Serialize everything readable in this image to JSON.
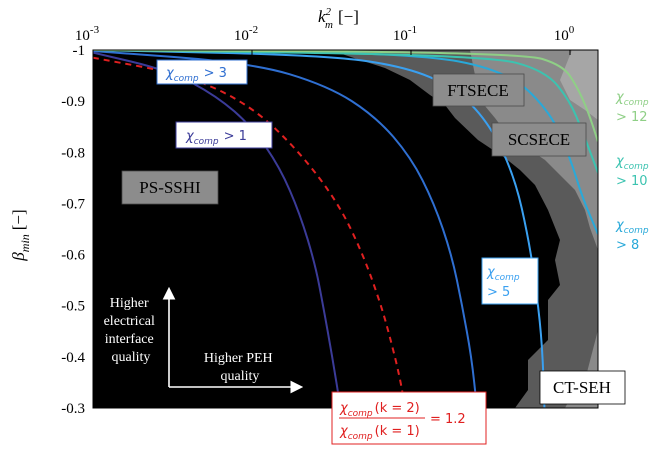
{
  "chart_data": {
    "type": "area",
    "title": "",
    "xlabel": {
      "symbol": "k",
      "sup": "2",
      "sub": "m",
      "unit": "[−]"
    },
    "ylabel": {
      "symbol": "β",
      "sub": "min",
      "unit": "[−]"
    },
    "x_scale": "log",
    "xlim": [
      0.001,
      1.5
    ],
    "ylim": [
      -0.3,
      -1.0
    ],
    "x_ticks": [
      {
        "value": 0.001,
        "base": "10",
        "exp": "-3"
      },
      {
        "value": 0.01,
        "base": "10",
        "exp": "-2"
      },
      {
        "value": 0.1,
        "base": "10",
        "exp": "-1"
      },
      {
        "value": 1,
        "base": "10",
        "exp": "0"
      }
    ],
    "y_ticks": [
      {
        "value": -1.0,
        "label": "-1"
      },
      {
        "value": -0.9,
        "label": "-0.9"
      },
      {
        "value": -0.8,
        "label": "-0.8"
      },
      {
        "value": -0.7,
        "label": "-0.7"
      },
      {
        "value": -0.6,
        "label": "-0.6"
      },
      {
        "value": -0.5,
        "label": "-0.5"
      },
      {
        "value": -0.4,
        "label": "-0.4"
      },
      {
        "value": -0.3,
        "label": "-0.3"
      }
    ],
    "regions": [
      {
        "label": "PS-SSHI",
        "color": "#000000"
      },
      {
        "label": "FTSECE",
        "color": "#5a5a5a"
      },
      {
        "label": "SCSECE",
        "color": "#8a8a8a"
      },
      {
        "label": "CT-SEH",
        "color": "#ffffff"
      }
    ],
    "series": [
      {
        "id": "c1",
        "label": "χcomp > 1",
        "color": "#3b3b98",
        "dashed": false,
        "x": [
          0.001,
          0.003,
          0.006,
          0.01,
          0.015,
          0.02,
          0.025,
          0.028,
          0.032,
          0.036
        ],
        "y": [
          -0.995,
          -0.96,
          -0.91,
          -0.85,
          -0.77,
          -0.68,
          -0.58,
          -0.5,
          -0.4,
          -0.3
        ]
      },
      {
        "id": "c3",
        "label": "χcomp > 3",
        "color": "#2f6fd1",
        "dashed": false,
        "x": [
          0.001,
          0.01,
          0.03,
          0.06,
          0.1,
          0.14,
          0.18,
          0.21,
          0.24,
          0.26
        ],
        "y": [
          -0.998,
          -0.975,
          -0.93,
          -0.87,
          -0.79,
          -0.7,
          -0.6,
          -0.5,
          -0.4,
          -0.3
        ]
      },
      {
        "id": "ratio",
        "label": "χcomp(k=2)/χcomp(k=1) = 1.2",
        "color": "#e02020",
        "dashed": true,
        "x": [
          0.001,
          0.004,
          0.01,
          0.02,
          0.035,
          0.05,
          0.065,
          0.075,
          0.085,
          0.092
        ],
        "y": [
          -0.985,
          -0.95,
          -0.89,
          -0.8,
          -0.7,
          -0.6,
          -0.5,
          -0.43,
          -0.36,
          -0.3
        ]
      },
      {
        "id": "c5",
        "label": "χcomp > 5",
        "color": "#3aa0f0",
        "dashed": false,
        "x": [
          0.001,
          0.03,
          0.1,
          0.2,
          0.32,
          0.45,
          0.55,
          0.62,
          0.67,
          0.69
        ],
        "y": [
          -1.0,
          -0.99,
          -0.965,
          -0.92,
          -0.85,
          -0.75,
          -0.63,
          -0.52,
          -0.42,
          -0.3
        ]
      },
      {
        "id": "c8",
        "label": "χcomp > 8",
        "color": "#29a9d9",
        "dashed": false,
        "x": [
          0.001,
          0.1,
          0.4,
          0.75,
          1.0,
          1.2,
          1.5
        ],
        "y": [
          -1.0,
          -0.995,
          -0.96,
          -0.88,
          -0.79,
          -0.71,
          -0.64
        ]
      },
      {
        "id": "c10",
        "label": "χcomp > 10",
        "color": "#3cc3b0",
        "dashed": false,
        "x": [
          0.001,
          0.3,
          0.7,
          1.0,
          1.2,
          1.5
        ],
        "y": [
          -1.0,
          -0.99,
          -0.96,
          -0.9,
          -0.84,
          -0.76
        ]
      },
      {
        "id": "c12",
        "label": "χcomp > 12",
        "color": "#8fcf86",
        "dashed": false,
        "x": [
          0.001,
          0.5,
          0.9,
          1.1,
          1.3,
          1.5
        ],
        "y": [
          -1.0,
          -0.995,
          -0.97,
          -0.93,
          -0.88,
          -0.82
        ]
      }
    ],
    "annotations": {
      "c1": {
        "sub": "comp",
        "rel": "> 1"
      },
      "c3": {
        "sub": "comp",
        "rel": "> 3"
      },
      "c5": {
        "sub": "comp",
        "rel": "> 5"
      },
      "c8": {
        "sub": "comp",
        "rel": "> 8"
      },
      "c10": {
        "sub": "comp",
        "rel": "> 10"
      },
      "c12": {
        "sub": "comp",
        "rel": "> 12"
      },
      "ratio": {
        "num": "(k = 2)",
        "den": "(k = 1)",
        "sub": "comp",
        "rhs": "= 1.2"
      }
    },
    "arrows": {
      "vertical": [
        "Higher",
        "electrical",
        "interface",
        "quality"
      ],
      "horizontal": [
        "Higher PEH",
        "quality"
      ]
    },
    "grid": false,
    "legend": "none"
  }
}
